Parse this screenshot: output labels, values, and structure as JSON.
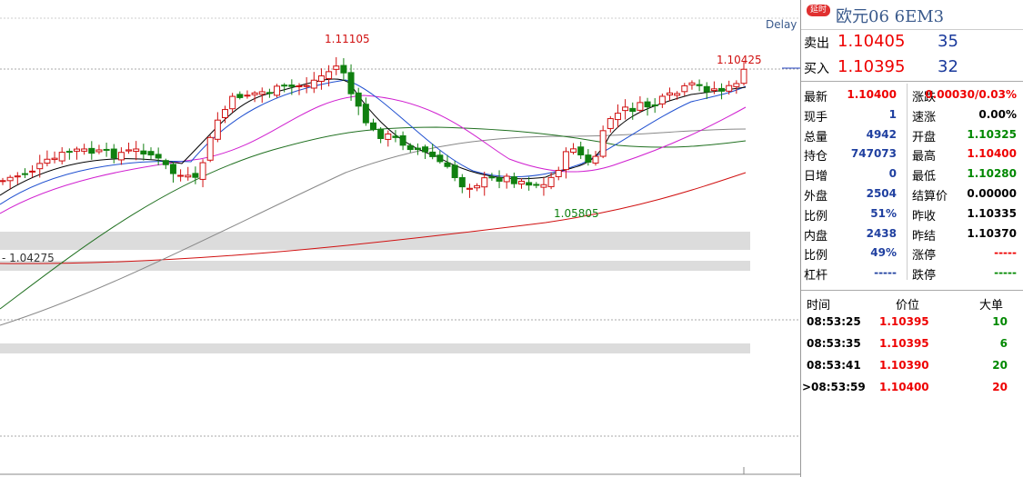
{
  "chart": {
    "delay": "Delay",
    "labels": [
      "1.11105",
      "1.10425",
      "1.05805",
      "- 1.04275"
    ]
  },
  "header": {
    "badge": "延时",
    "title": "欧元06  6EM3"
  },
  "quote": {
    "rows": [
      [
        "卖出",
        "1.10405",
        "35"
      ],
      [
        "买入",
        "1.10395",
        "32"
      ]
    ]
  },
  "stats": {
    "rows": [
      [
        "最新",
        "1.10400",
        "涨跌",
        "0.00030/0.03%"
      ],
      [
        "现手",
        "1",
        "速涨",
        "0.00%"
      ],
      [
        "总量",
        "4942",
        "开盘",
        "1.10325"
      ],
      [
        "持仓",
        "747073",
        "最高",
        "1.10400"
      ],
      [
        "日增",
        "0",
        "最低",
        "1.10280"
      ],
      [
        "外盘",
        "2504",
        "结算价",
        "0.00000"
      ],
      [
        "比例",
        "51%",
        "昨收",
        "1.10335"
      ],
      [
        "内盘",
        "2438",
        "昨结",
        "1.10370"
      ],
      [
        "比例",
        "49%",
        "涨停",
        "-----"
      ],
      [
        "杠杆",
        "-----",
        "跌停",
        "-----"
      ]
    ]
  },
  "trades": {
    "header": [
      "时间",
      "价位",
      "大单"
    ],
    "rows": [
      [
        "08:53:25",
        "1.10395",
        "10"
      ],
      [
        "08:53:35",
        "1.10395",
        "6"
      ],
      [
        "08:53:41",
        "1.10390",
        "20"
      ],
      [
        ">08:53:59",
        "1.10400",
        "20"
      ]
    ]
  }
}
